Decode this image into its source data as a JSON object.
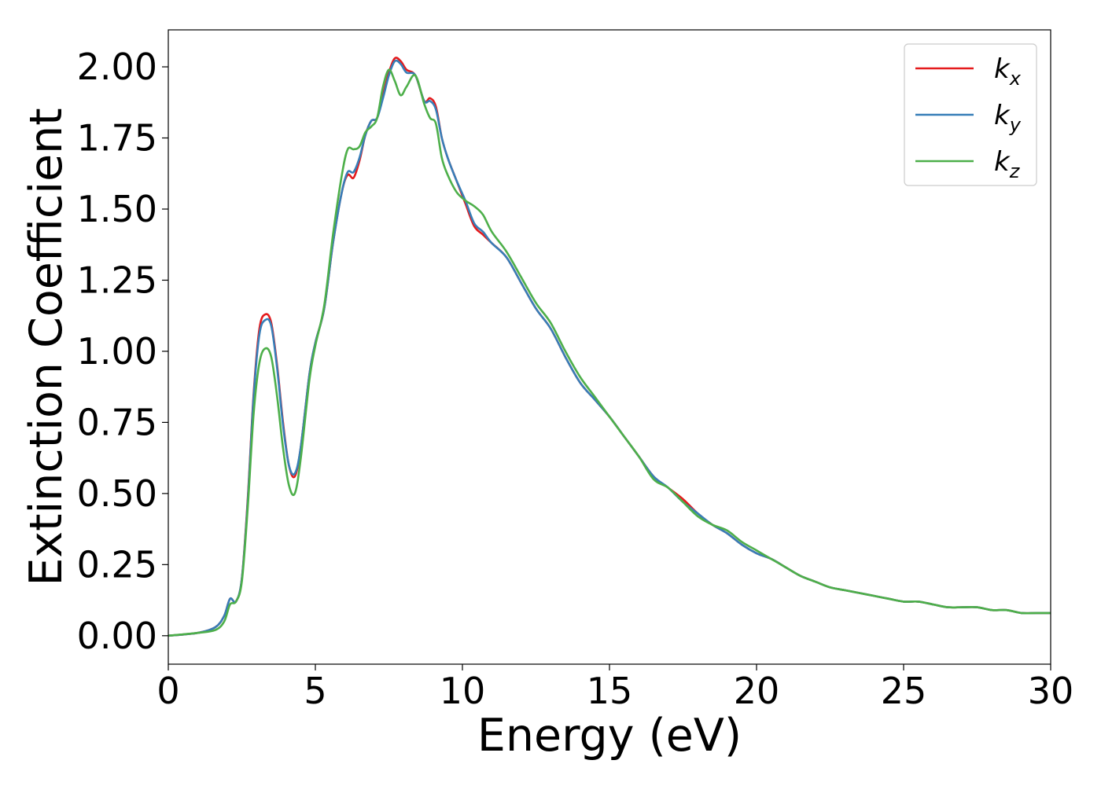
{
  "chart_data": {
    "type": "line",
    "title": "",
    "xlabel": "Energy (eV)",
    "ylabel": "Extinction Coefficient",
    "xlim": [
      0,
      30
    ],
    "ylim": [
      -0.1,
      2.13
    ],
    "xticks": [
      0,
      5,
      10,
      15,
      20,
      25,
      30
    ],
    "xtick_labels": [
      "0",
      "5",
      "10",
      "15",
      "20",
      "25",
      "30"
    ],
    "yticks": [
      0.0,
      0.25,
      0.5,
      0.75,
      1.0,
      1.25,
      1.5,
      1.75,
      2.0
    ],
    "ytick_labels": [
      "0.00",
      "0.25",
      "0.50",
      "0.75",
      "1.00",
      "1.25",
      "1.50",
      "1.75",
      "2.00"
    ],
    "grid": false,
    "legend_position": "top-right",
    "series": [
      {
        "name": "k",
        "subscript": "x",
        "color": "#e41a1c",
        "x": [
          0,
          1.0,
          1.6,
          1.9,
          2.1,
          2.3,
          2.5,
          2.7,
          2.9,
          3.1,
          3.3,
          3.5,
          3.7,
          3.9,
          4.1,
          4.3,
          4.5,
          4.8,
          5.0,
          5.3,
          5.6,
          5.9,
          6.1,
          6.3,
          6.5,
          6.7,
          6.9,
          7.1,
          7.3,
          7.5,
          7.7,
          7.9,
          8.1,
          8.4,
          8.7,
          8.9,
          9.1,
          9.3,
          9.5,
          9.8,
          10.1,
          10.4,
          10.7,
          11.0,
          11.5,
          12.0,
          12.5,
          13.0,
          13.5,
          14.0,
          14.5,
          15.0,
          15.5,
          16.0,
          16.5,
          17.0,
          17.5,
          18.0,
          18.5,
          19.0,
          19.5,
          20.0,
          20.5,
          21.0,
          21.5,
          22.0,
          22.5,
          23.0,
          23.5,
          24.0,
          24.5,
          25.0,
          25.5,
          26.0,
          26.5,
          27.0,
          27.5,
          28.0,
          28.5,
          29.0,
          29.5,
          30.0
        ],
        "y": [
          0.0,
          0.01,
          0.03,
          0.07,
          0.13,
          0.12,
          0.2,
          0.48,
          0.85,
          1.08,
          1.13,
          1.1,
          0.95,
          0.75,
          0.6,
          0.56,
          0.66,
          0.92,
          1.03,
          1.15,
          1.38,
          1.56,
          1.62,
          1.61,
          1.67,
          1.76,
          1.81,
          1.82,
          1.9,
          1.98,
          2.03,
          2.02,
          1.99,
          1.97,
          1.88,
          1.89,
          1.86,
          1.75,
          1.68,
          1.6,
          1.52,
          1.44,
          1.41,
          1.38,
          1.33,
          1.24,
          1.15,
          1.08,
          0.98,
          0.89,
          0.83,
          0.77,
          0.7,
          0.63,
          0.56,
          0.52,
          0.48,
          0.43,
          0.39,
          0.36,
          0.32,
          0.29,
          0.27,
          0.24,
          0.21,
          0.19,
          0.17,
          0.16,
          0.15,
          0.14,
          0.13,
          0.12,
          0.12,
          0.11,
          0.1,
          0.1,
          0.1,
          0.09,
          0.09,
          0.08,
          0.08,
          0.08
        ]
      },
      {
        "name": "k",
        "subscript": "y",
        "color": "#377eb8",
        "x": [
          0,
          1.0,
          1.6,
          1.9,
          2.1,
          2.3,
          2.5,
          2.7,
          2.9,
          3.1,
          3.3,
          3.5,
          3.7,
          3.9,
          4.1,
          4.3,
          4.5,
          4.8,
          5.0,
          5.3,
          5.6,
          5.9,
          6.1,
          6.3,
          6.5,
          6.7,
          6.9,
          7.1,
          7.3,
          7.5,
          7.7,
          7.9,
          8.1,
          8.4,
          8.7,
          8.9,
          9.1,
          9.3,
          9.5,
          9.8,
          10.1,
          10.4,
          10.7,
          11.0,
          11.5,
          12.0,
          12.5,
          13.0,
          13.5,
          14.0,
          14.5,
          15.0,
          15.5,
          16.0,
          16.5,
          17.0,
          17.5,
          18.0,
          18.5,
          19.0,
          19.5,
          20.0,
          20.5,
          21.0,
          21.5,
          22.0,
          22.5,
          23.0,
          23.5,
          24.0,
          24.5,
          25.0,
          25.5,
          26.0,
          26.5,
          27.0,
          27.5,
          28.0,
          28.5,
          29.0,
          29.5,
          30.0
        ],
        "y": [
          0.0,
          0.01,
          0.03,
          0.07,
          0.13,
          0.12,
          0.2,
          0.47,
          0.84,
          1.06,
          1.11,
          1.09,
          0.94,
          0.74,
          0.6,
          0.57,
          0.66,
          0.92,
          1.03,
          1.15,
          1.38,
          1.56,
          1.63,
          1.63,
          1.68,
          1.76,
          1.81,
          1.82,
          1.89,
          1.97,
          2.02,
          2.01,
          1.98,
          1.97,
          1.88,
          1.88,
          1.85,
          1.75,
          1.68,
          1.6,
          1.53,
          1.45,
          1.42,
          1.38,
          1.33,
          1.24,
          1.15,
          1.08,
          0.98,
          0.89,
          0.83,
          0.77,
          0.7,
          0.63,
          0.56,
          0.52,
          0.47,
          0.43,
          0.39,
          0.36,
          0.32,
          0.29,
          0.27,
          0.24,
          0.21,
          0.19,
          0.17,
          0.16,
          0.15,
          0.14,
          0.13,
          0.12,
          0.12,
          0.11,
          0.1,
          0.1,
          0.1,
          0.09,
          0.09,
          0.08,
          0.08,
          0.08
        ]
      },
      {
        "name": "k",
        "subscript": "z",
        "color": "#4daf4a",
        "x": [
          0,
          1.0,
          1.6,
          1.9,
          2.1,
          2.3,
          2.5,
          2.7,
          2.9,
          3.1,
          3.3,
          3.5,
          3.7,
          3.9,
          4.1,
          4.3,
          4.5,
          4.8,
          5.0,
          5.3,
          5.6,
          5.9,
          6.1,
          6.3,
          6.5,
          6.7,
          6.9,
          7.1,
          7.3,
          7.5,
          7.7,
          7.9,
          8.1,
          8.4,
          8.7,
          8.9,
          9.1,
          9.3,
          9.5,
          9.8,
          10.1,
          10.4,
          10.7,
          11.0,
          11.5,
          12.0,
          12.5,
          13.0,
          13.5,
          14.0,
          14.5,
          15.0,
          15.5,
          16.0,
          16.5,
          17.0,
          17.5,
          18.0,
          18.5,
          19.0,
          19.5,
          20.0,
          20.5,
          21.0,
          21.5,
          22.0,
          22.5,
          23.0,
          23.5,
          24.0,
          24.5,
          25.0,
          25.5,
          26.0,
          26.5,
          27.0,
          27.5,
          28.0,
          28.5,
          29.0,
          29.5,
          30.0
        ],
        "y": [
          0.0,
          0.01,
          0.02,
          0.05,
          0.11,
          0.12,
          0.19,
          0.45,
          0.78,
          0.96,
          1.01,
          0.98,
          0.84,
          0.66,
          0.53,
          0.5,
          0.62,
          0.9,
          1.02,
          1.16,
          1.41,
          1.62,
          1.71,
          1.71,
          1.72,
          1.77,
          1.79,
          1.82,
          1.93,
          1.99,
          1.95,
          1.9,
          1.93,
          1.97,
          1.87,
          1.82,
          1.8,
          1.68,
          1.62,
          1.56,
          1.53,
          1.51,
          1.48,
          1.42,
          1.35,
          1.26,
          1.17,
          1.1,
          1.0,
          0.91,
          0.84,
          0.77,
          0.7,
          0.63,
          0.55,
          0.52,
          0.47,
          0.42,
          0.39,
          0.37,
          0.33,
          0.3,
          0.27,
          0.24,
          0.21,
          0.19,
          0.17,
          0.16,
          0.15,
          0.14,
          0.13,
          0.12,
          0.12,
          0.11,
          0.1,
          0.1,
          0.1,
          0.09,
          0.09,
          0.08,
          0.08,
          0.08
        ]
      }
    ]
  }
}
